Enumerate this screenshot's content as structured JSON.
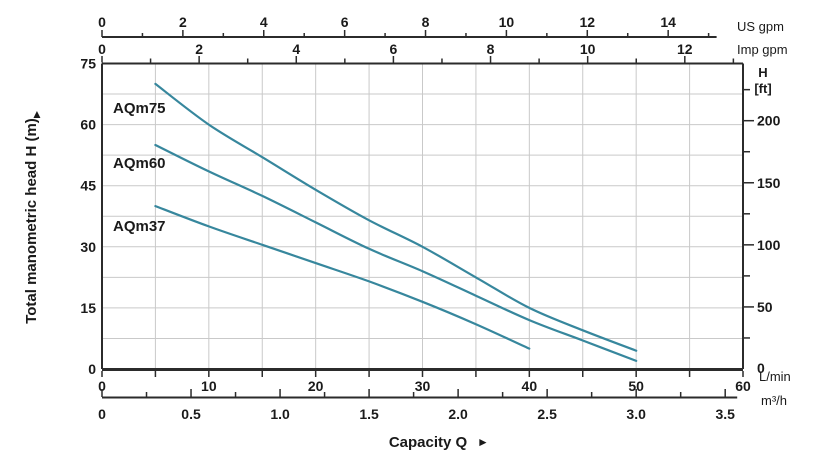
{
  "chart_data": {
    "type": "line",
    "description": "Pump performance curves: total manometric head H versus capacity Q",
    "x_axes": {
      "lmin": {
        "unit_label": "L/min",
        "range": [
          0,
          60
        ],
        "tick_labels": [
          0,
          10,
          20,
          30,
          40,
          50,
          60
        ],
        "minor_tick_step": 5,
        "grid_step": 5
      },
      "m3h": {
        "unit_label": "m³/h",
        "tick_labels": [
          "0",
          "0.5",
          "1.0",
          "1.5",
          "2.0",
          "2.5",
          "3.0",
          "3.5"
        ],
        "major_step": 0.5,
        "minor_step": 0.25,
        "max": 3.5,
        "lmin_per_unit": 16.6667
      },
      "us_gpm": {
        "unit_label": "US gpm",
        "tick_labels": [
          0,
          2,
          4,
          6,
          8,
          10,
          12,
          14
        ],
        "major_step": 2,
        "minor_step": 1,
        "minor_max": 15,
        "lmin_per_unit": 3.7854
      },
      "imp_gpm": {
        "unit_label": "Imp gpm",
        "tick_labels": [
          0,
          2,
          4,
          6,
          8,
          10,
          12
        ],
        "major_step": 2,
        "minor_step": 1,
        "minor_max": 13,
        "lmin_per_unit": 4.5461
      }
    },
    "y_axes": {
      "meters": {
        "axis_title": "Total manometric head H (m)",
        "range": [
          0,
          75
        ],
        "tick_labels": [
          0,
          15,
          30,
          45,
          60,
          75
        ],
        "grid_step": 7.5
      },
      "feet": {
        "unit_label_line1": "H",
        "unit_label_line2": "[ft]",
        "tick_labels": [
          0,
          50,
          100,
          150,
          200
        ],
        "major_step": 50,
        "minor_step": 25,
        "minor_max": 225,
        "meters_per_foot": 0.3048
      }
    },
    "capacity_axis_title": "Capacity Q",
    "arrows": {
      "capacity": "►",
      "head": "▲"
    },
    "series": [
      {
        "name": "AQm75",
        "points_lmin_m": [
          [
            5,
            70
          ],
          [
            10,
            60
          ],
          [
            15,
            52
          ],
          [
            20,
            44
          ],
          [
            25,
            36.5
          ],
          [
            30,
            30
          ],
          [
            35,
            22.5
          ],
          [
            40,
            15
          ],
          [
            45,
            9.5
          ],
          [
            50,
            4.5
          ]
        ]
      },
      {
        "name": "AQm60",
        "points_lmin_m": [
          [
            5,
            55
          ],
          [
            10,
            48.5
          ],
          [
            15,
            42.5
          ],
          [
            20,
            36
          ],
          [
            25,
            29.5
          ],
          [
            30,
            24
          ],
          [
            35,
            18
          ],
          [
            40,
            12
          ],
          [
            45,
            7
          ],
          [
            50,
            2
          ]
        ]
      },
      {
        "name": "AQm37",
        "points_lmin_m": [
          [
            5,
            40
          ],
          [
            10,
            35
          ],
          [
            15,
            30.5
          ],
          [
            20,
            26
          ],
          [
            25,
            21.5
          ],
          [
            30,
            16.5
          ],
          [
            35,
            11
          ],
          [
            40,
            5
          ]
        ]
      }
    ],
    "colors": {
      "curve": "#37879d",
      "grid": "#c9c9c9",
      "border": "#2b2b2b",
      "text": "#1a1a1a"
    }
  }
}
